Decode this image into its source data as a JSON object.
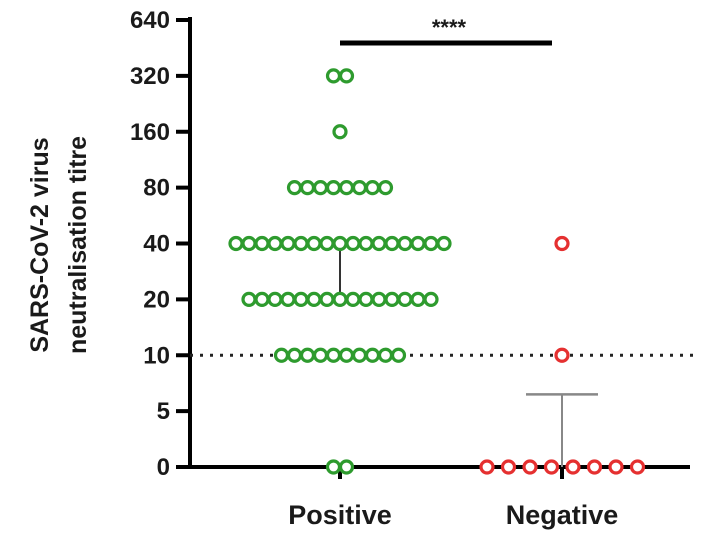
{
  "chart_data": {
    "type": "scatter",
    "ylabel_lines": [
      "SARS-CoV-2 virus",
      "neutralisation titre"
    ],
    "y_ticks": [
      "0",
      "5",
      "10",
      "20",
      "40",
      "80",
      "160",
      "320",
      "640"
    ],
    "categories": [
      "Positive",
      "Negative"
    ],
    "series": [
      {
        "category": "Positive",
        "color": "#2e9b2e",
        "counts": {
          "0": 2,
          "10": 10,
          "20": 15,
          "40": 17,
          "80": 8,
          "160": 1,
          "320": 2
        },
        "median": 40,
        "error_low": 20
      },
      {
        "category": "Negative",
        "color": "#e53030",
        "counts": {
          "0": 8,
          "10": 1,
          "40": 1
        },
        "error_high": 6.5,
        "error_low": 0
      }
    ],
    "reference_line": 10,
    "significance": "****",
    "grid": false
  }
}
